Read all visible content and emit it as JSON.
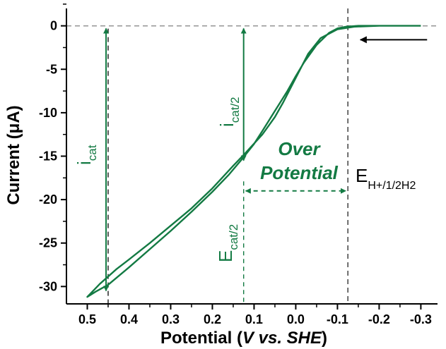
{
  "chart_data": {
    "type": "line",
    "title": "",
    "xlabel": "Potential (V vs. SHE)",
    "xlabel_parts": [
      "Potential (",
      "V vs. SHE",
      ")"
    ],
    "ylabel": "Current (μA)",
    "xlim": [
      0.55,
      -0.34
    ],
    "ylim": [
      -32,
      2
    ],
    "x_reversed": true,
    "x_ticks": [
      0.5,
      0.4,
      0.3,
      0.2,
      0.1,
      0.0,
      -0.1,
      -0.2,
      -0.3
    ],
    "x_tick_labels": [
      "0.5",
      "0.4",
      "0.3",
      "0.2",
      "0.1",
      "0.0",
      "-0.1",
      "-0.2",
      "-0.3"
    ],
    "y_ticks": [
      0,
      -5,
      -10,
      -15,
      -20,
      -25,
      -30
    ],
    "y_tick_labels": [
      "0",
      "-5",
      "-10",
      "-15",
      "-20",
      "-25",
      "-30"
    ],
    "grid": false,
    "colors": {
      "curve": "#137a43",
      "annotation": "#137a43",
      "reference": "#000000",
      "zero_line": "#999999"
    },
    "series": [
      {
        "x": [
          -0.3,
          -0.2,
          -0.15,
          -0.12,
          -0.1,
          -0.08,
          -0.05,
          -0.02,
          0.0,
          0.02,
          0.05,
          0.08,
          0.1,
          0.13,
          0.16,
          0.2,
          0.25,
          0.3,
          0.35,
          0.4,
          0.45,
          0.48,
          0.5,
          0.47,
          0.43,
          0.4,
          0.35,
          0.3,
          0.25,
          0.2,
          0.15,
          0.12,
          0.08,
          0.05,
          0.03,
          0.0,
          -0.03,
          -0.06,
          -0.1,
          -0.14,
          -0.2,
          -0.3
        ],
        "y": [
          0.0,
          0.0,
          0.0,
          -0.1,
          -0.3,
          -0.8,
          -2.2,
          -4.2,
          -5.8,
          -7.5,
          -9.8,
          -12.1,
          -13.6,
          -15.4,
          -17.1,
          -19.1,
          -21.4,
          -23.6,
          -25.7,
          -27.8,
          -29.8,
          -30.6,
          -31.2,
          -29.7,
          -28.0,
          -26.9,
          -25.0,
          -23.0,
          -21.0,
          -18.7,
          -16.1,
          -14.6,
          -12.5,
          -10.5,
          -8.8,
          -6.0,
          -3.2,
          -1.4,
          -0.4,
          -0.1,
          0.0,
          0.0
        ]
      }
    ],
    "reference_lines": {
      "zero_current": 0,
      "e_ref_x": -0.125,
      "e_cat_half_x": 0.125,
      "i_cat_x": 0.45
    },
    "annotations": {
      "i_cat": {
        "main": "i",
        "sub": "cat"
      },
      "i_cat_half": {
        "main": "i",
        "sub": "cat/2"
      },
      "e_cat_half": {
        "main": "E",
        "sub": "cat/2"
      },
      "e_ref": {
        "main": "E",
        "sub": "H+/1/2H2"
      },
      "overpotential": [
        "Over",
        "Potential"
      ]
    }
  }
}
